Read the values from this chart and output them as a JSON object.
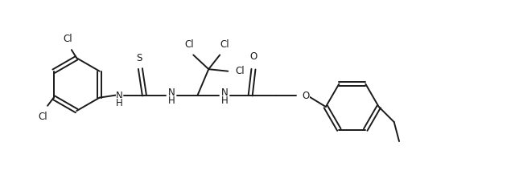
{
  "background_color": "#ffffff",
  "line_color": "#1a1a1a",
  "line_width": 1.4,
  "font_size": 8.5,
  "fig_width": 6.4,
  "fig_height": 2.23,
  "xlim": [
    0,
    10.0
  ],
  "ylim": [
    0,
    3.5
  ]
}
